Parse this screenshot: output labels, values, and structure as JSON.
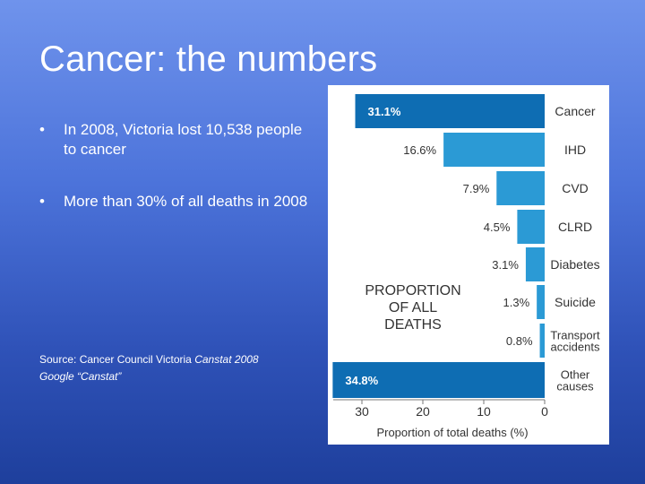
{
  "slide": {
    "title": "Cancer: the numbers",
    "bullets": [
      "In 2008, Victoria lost 10,538 people to cancer",
      "More than 30% of all deaths in 2008"
    ],
    "bullet_symbol": "•",
    "source_prefix": "Source: Cancer Council Victoria",
    "source_publication": "Canstat 2008",
    "source_line2": "Google “Canstat”"
  },
  "chart_data": {
    "type": "bar",
    "orientation": "horizontal",
    "categories": [
      "Cancer",
      "IHD",
      "CVD",
      "CLRD",
      "Diabetes",
      "Suicide",
      "Transport accidents",
      "Other causes"
    ],
    "category_lines": [
      [
        "Cancer"
      ],
      [
        "IHD"
      ],
      [
        "CVD"
      ],
      [
        "CLRD"
      ],
      [
        "Diabetes"
      ],
      [
        "Suicide"
      ],
      [
        "Transport",
        "accidents"
      ],
      [
        "Other",
        "causes"
      ]
    ],
    "values": [
      31.1,
      16.6,
      7.9,
      4.5,
      3.1,
      1.3,
      0.8,
      34.8
    ],
    "value_labels": [
      "31.1%",
      "16.6%",
      "7.9%",
      "4.5%",
      "3.1%",
      "1.3%",
      "0.8%",
      "34.8%"
    ],
    "highlighted": [
      "Cancer",
      "Other causes"
    ],
    "title_lines": [
      "PROPORTION",
      "OF ALL",
      "DEATHS"
    ],
    "xlabel": "Proportion of total deaths (%)",
    "xticks": [
      30,
      20,
      10,
      0
    ],
    "xlim": [
      0,
      35
    ],
    "x_direction": "reversed",
    "colors": {
      "bar": "#2b9ad5",
      "bar_highlight": "#0e6db3",
      "label_dark": "#333333",
      "label_light": "#ffffff"
    }
  }
}
